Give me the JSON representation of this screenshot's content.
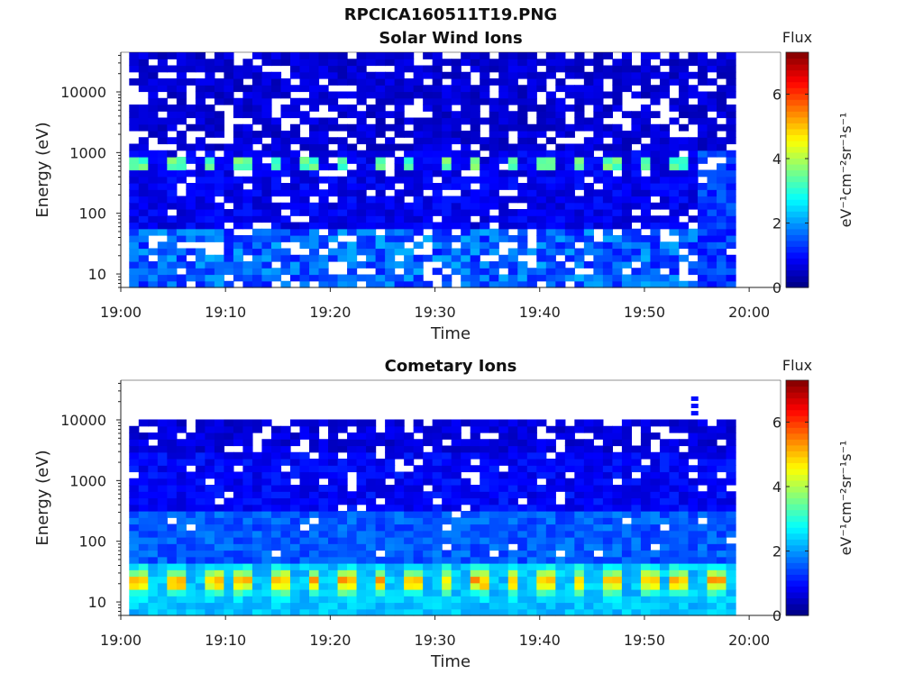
{
  "figure": {
    "title": "RPCICA160511T19.PNG"
  },
  "chart_data": [
    {
      "type": "heatmap",
      "title": "Solar Wind Ions",
      "xlabel": "Time",
      "ylabel": "Energy (eV)",
      "x_ticks": [
        "19:00",
        "19:10",
        "19:20",
        "19:30",
        "19:40",
        "19:50",
        "20:00"
      ],
      "x_range_minutes": [
        0,
        63
      ],
      "data_extent_minutes": [
        0.8,
        58.7
      ],
      "y_scale": "log",
      "y_ticks": [
        "10",
        "100",
        "1000",
        "10000"
      ],
      "y_range": [
        6,
        45000
      ],
      "colorbar": {
        "title": "Flux",
        "label": "eV⁻¹cm⁻²sr⁻¹s⁻¹",
        "ticks": [
          "0",
          "2",
          "4",
          "6"
        ],
        "range": [
          0,
          7.3
        ],
        "colormap": "jet"
      },
      "features": [
        {
          "description": "periodic peak",
          "energy_eV": 650,
          "flux": 3.6,
          "period_min": 3.2
        },
        {
          "description": "low-energy band",
          "energy_range_eV": [
            6,
            60
          ],
          "flux": 1.8
        },
        {
          "description": "high-energy background",
          "energy_range_eV": [
            1000,
            45000
          ],
          "flux": 0.7
        }
      ]
    },
    {
      "type": "heatmap",
      "title": "Cometary Ions",
      "xlabel": "Time",
      "ylabel": "Energy (eV)",
      "x_ticks": [
        "19:00",
        "19:10",
        "19:20",
        "19:30",
        "19:40",
        "19:50",
        "20:00"
      ],
      "x_range_minutes": [
        0,
        63
      ],
      "data_extent_minutes": [
        0.8,
        58.7
      ],
      "y_scale": "log",
      "y_ticks": [
        "10",
        "100",
        "1000",
        "10000"
      ],
      "y_range": [
        6,
        45000
      ],
      "colorbar": {
        "title": "Flux",
        "label": "eV⁻¹cm⁻²sr⁻¹s⁻¹",
        "ticks": [
          "0",
          "2",
          "4",
          "6"
        ],
        "range": [
          0,
          7.3
        ],
        "colormap": "jet"
      },
      "features": [
        {
          "description": "periodic peak",
          "energy_range_eV": [
            12,
            35
          ],
          "flux": 4.6,
          "period_min": 3.2
        },
        {
          "description": "background",
          "energy_range_eV": [
            40,
            11000
          ],
          "flux": 1.0
        },
        {
          "description": "isolated pixels",
          "energy_eV": 22000,
          "time_min": 54.8,
          "flux": 1.0
        }
      ]
    }
  ]
}
